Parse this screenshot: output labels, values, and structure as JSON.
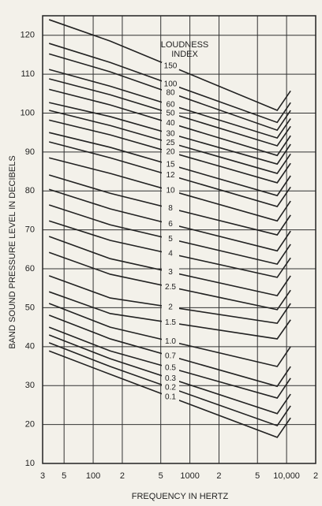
{
  "chart_data": {
    "type": "line",
    "x_label": "FREQUENCY IN HERTZ",
    "y_label": "BAND SOUND PRESSURE LEVEL IN DECIBELS",
    "legend_title": [
      "LOUDNESS",
      "INDEX"
    ],
    "log_x": true,
    "grid": true,
    "color": "#222222",
    "x": [
      35,
      150,
      8000,
      11000
    ],
    "xlim": [
      30,
      20000
    ],
    "ylim": [
      10,
      125
    ],
    "xticks": [
      {
        "value": 30,
        "label": "3"
      },
      {
        "value": 50,
        "label": "5"
      },
      100,
      {
        "value": 200,
        "label": "2"
      },
      {
        "value": 500,
        "label": "5"
      },
      1000,
      {
        "value": 2000,
        "label": "2"
      },
      {
        "value": 5000,
        "label": "5"
      },
      {
        "value": 10000,
        "label": "10,000"
      },
      {
        "value": 20000,
        "label": "2"
      }
    ],
    "yticks": [
      10,
      20,
      30,
      40,
      50,
      60,
      70,
      80,
      90,
      100,
      110,
      120
    ],
    "series": [
      {
        "name": "150",
        "values": [
          124.0,
          118.5,
          100.7,
          105.7
        ]
      },
      {
        "name": "100",
        "values": [
          117.9,
          113.0,
          97.6,
          102.7
        ]
      },
      {
        "name": "80",
        "values": [
          115.2,
          110.6,
          95.6,
          100.7
        ]
      },
      {
        "name": "60",
        "values": [
          111.2,
          106.9,
          93.6,
          98.6
        ]
      },
      {
        "name": "50",
        "values": [
          108.8,
          104.7,
          91.6,
          96.6
        ]
      },
      {
        "name": "40",
        "values": [
          106.1,
          102.1,
          89.1,
          94.2
        ]
      },
      {
        "name": "30",
        "values": [
          102.7,
          99.1,
          86.9,
          92.0
        ]
      },
      {
        "name": "25",
        "values": [
          100.7,
          96.8,
          84.5,
          89.5
        ]
      },
      {
        "name": "20",
        "values": [
          98.2,
          94.4,
          82.1,
          87.1
        ]
      },
      {
        "name": "15",
        "values": [
          95.0,
          91.2,
          78.8,
          83.9
        ]
      },
      {
        "name": "12",
        "values": [
          92.6,
          88.5,
          76.0,
          81.0
        ]
      },
      {
        "name": "10",
        "values": [
          88.5,
          84.5,
          72.3,
          77.4
        ]
      },
      {
        "name": "8",
        "values": [
          84.1,
          79.4,
          68.7,
          73.8
        ]
      },
      {
        "name": "6",
        "values": [
          80.4,
          75.4,
          64.6,
          69.7
        ]
      },
      {
        "name": "5",
        "values": [
          76.4,
          71.3,
          61.2,
          66.3
        ]
      },
      {
        "name": "4",
        "values": [
          72.3,
          67.3,
          57.8,
          62.8
        ]
      },
      {
        "name": "3",
        "values": [
          68.3,
          62.6,
          53.1,
          58.2
        ]
      },
      {
        "name": "2.5",
        "values": [
          64.2,
          58.6,
          49.5,
          54.5
        ]
      },
      {
        "name": "2",
        "values": [
          58.2,
          52.5,
          46.0,
          51.1
        ]
      },
      {
        "name": "1.5",
        "values": [
          54.1,
          48.5,
          42.0,
          46.9
        ]
      },
      {
        "name": "1.0",
        "values": [
          51.1,
          45.0,
          34.9,
          40.0
        ]
      },
      {
        "name": "0.7",
        "values": [
          48.1,
          42.0,
          29.8,
          34.9
        ]
      },
      {
        "name": "0.5",
        "values": [
          45.0,
          38.9,
          26.8,
          31.9
        ]
      },
      {
        "name": "0.3",
        "values": [
          43.0,
          36.9,
          22.8,
          27.8
        ]
      },
      {
        "name": "0.2",
        "values": [
          41.0,
          34.9,
          19.7,
          24.8
        ]
      },
      {
        "name": "0.1",
        "values": [
          38.9,
          32.9,
          16.7,
          21.7
        ]
      }
    ]
  }
}
